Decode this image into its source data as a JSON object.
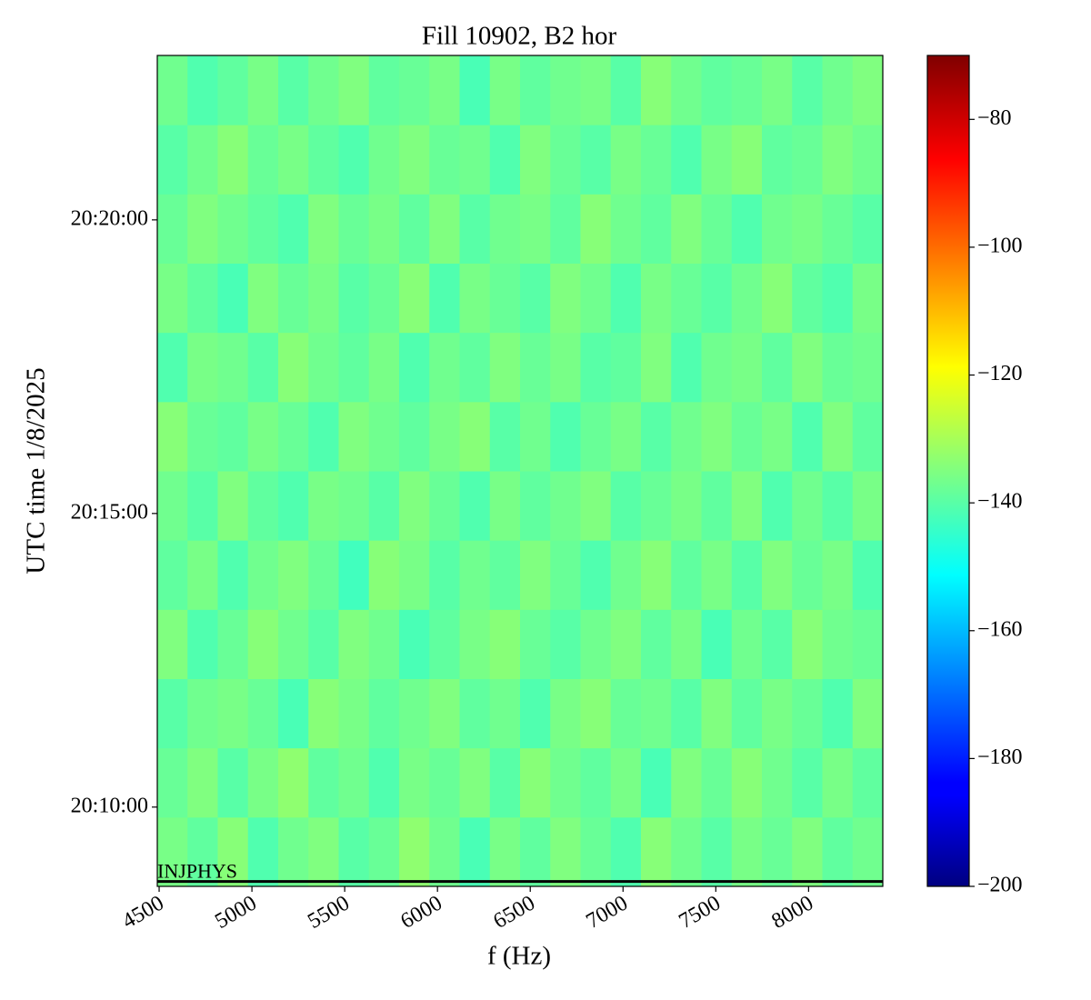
{
  "chart_data": {
    "type": "heatmap",
    "title": "Fill 10902, B2 hor",
    "x_label": "f (Hz)",
    "y_label": "UTC time 1/8/2025",
    "xlim": [
      4490,
      8400
    ],
    "xticks": [
      4500,
      5000,
      5500,
      6000,
      6500,
      7000,
      7500,
      8000
    ],
    "ylim": [
      "20:08:39",
      "20:22:48"
    ],
    "yticks": [
      "20:10:00",
      "20:15:00",
      "20:20:00"
    ],
    "colormap": "jet",
    "clim": [
      -200,
      -70
    ],
    "cticks": [
      {
        "value": -80,
        "label": "−80"
      },
      {
        "value": -100,
        "label": "−100"
      },
      {
        "value": -120,
        "label": "−120"
      },
      {
        "value": -140,
        "label": "−140"
      },
      {
        "value": -160,
        "label": "−160"
      },
      {
        "value": -180,
        "label": "−180"
      },
      {
        "value": -200,
        "label": "−200"
      }
    ],
    "annotations": [
      {
        "text": "INJPHYS",
        "time": "20:08:44",
        "color": "#000000"
      }
    ],
    "z": [
      [
        -136,
        -139,
        -134,
        -141,
        -137,
        -135,
        -140,
        -138,
        -133,
        -137,
        -142,
        -136,
        -139,
        -135,
        -138,
        -141,
        -134,
        -137,
        -140,
        -136,
        -138,
        -135,
        -139,
        -137
      ],
      [
        -138,
        -135,
        -140,
        -136,
        -133,
        -139,
        -137,
        -141,
        -136,
        -138,
        -135,
        -140,
        -134,
        -137,
        -139,
        -136,
        -142,
        -135,
        -138,
        -134,
        -137,
        -140,
        -136,
        -139
      ],
      [
        -140,
        -137,
        -136,
        -138,
        -142,
        -134,
        -136,
        -139,
        -137,
        -135,
        -139,
        -137,
        -141,
        -136,
        -134,
        -138,
        -137,
        -140,
        -135,
        -139,
        -136,
        -138,
        -141,
        -135
      ],
      [
        -135,
        -141,
        -138,
        -134,
        -137,
        -140,
        -135,
        -137,
        -142,
        -139,
        -136,
        -134,
        -138,
        -140,
        -137,
        -135,
        -139,
        -136,
        -142,
        -137,
        -140,
        -134,
        -137,
        -138
      ],
      [
        -139,
        -136,
        -141,
        -137,
        -135,
        -138,
        -143,
        -134,
        -136,
        -140,
        -137,
        -139,
        -135,
        -138,
        -141,
        -137,
        -134,
        -139,
        -136,
        -140,
        -135,
        -138,
        -136,
        -141
      ],
      [
        -137,
        -140,
        -135,
        -139,
        -141,
        -136,
        -137,
        -140,
        -135,
        -138,
        -141,
        -136,
        -139,
        -137,
        -135,
        -140,
        -138,
        -136,
        -139,
        -135,
        -141,
        -137,
        -140,
        -136
      ],
      [
        -134,
        -138,
        -139,
        -136,
        -138,
        -141,
        -135,
        -137,
        -139,
        -136,
        -134,
        -140,
        -137,
        -141,
        -138,
        -136,
        -140,
        -137,
        -135,
        -138,
        -136,
        -141,
        -135,
        -139
      ],
      [
        -141,
        -136,
        -137,
        -140,
        -134,
        -137,
        -139,
        -136,
        -141,
        -137,
        -139,
        -135,
        -138,
        -136,
        -140,
        -139,
        -135,
        -141,
        -137,
        -136,
        -139,
        -135,
        -138,
        -137
      ],
      [
        -136,
        -139,
        -142,
        -135,
        -138,
        -136,
        -140,
        -138,
        -134,
        -141,
        -136,
        -138,
        -140,
        -135,
        -137,
        -141,
        -136,
        -138,
        -140,
        -137,
        -134,
        -139,
        -141,
        -136
      ],
      [
        -138,
        -135,
        -137,
        -139,
        -141,
        -135,
        -138,
        -136,
        -139,
        -135,
        -140,
        -137,
        -136,
        -139,
        -134,
        -137,
        -139,
        -135,
        -138,
        -141,
        -137,
        -136,
        -138,
        -140
      ],
      [
        -140,
        -137,
        -134,
        -138,
        -136,
        -139,
        -141,
        -137,
        -135,
        -138,
        -137,
        -141,
        -135,
        -138,
        -140,
        -136,
        -138,
        -141,
        -136,
        -134,
        -139,
        -138,
        -135,
        -137
      ],
      [
        -137,
        -141,
        -139,
        -136,
        -140,
        -137,
        -135,
        -139,
        -138,
        -136,
        -142,
        -136,
        -139,
        -137,
        -136,
        -140,
        -134,
        -137,
        -139,
        -138,
        -136,
        -140,
        -137,
        -135
      ]
    ]
  }
}
